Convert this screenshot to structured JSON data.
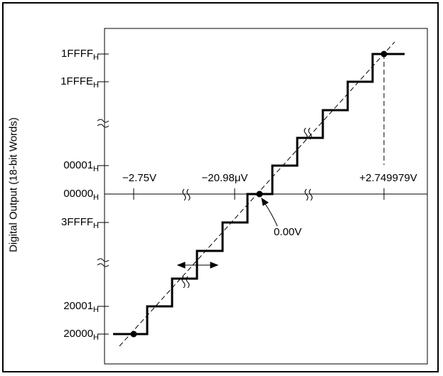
{
  "y_axis_title": "Digital Output (18-bit Words)",
  "y_codes": [
    {
      "code": "1FFFF",
      "sub": "H",
      "level": 10
    },
    {
      "code": "1FFFE",
      "sub": "H",
      "level": 9
    },
    {
      "code": "00001",
      "sub": "H",
      "level": 5
    },
    {
      "code": "00000",
      "sub": "H",
      "level": 4
    },
    {
      "code": "3FFFF",
      "sub": "H",
      "level": 3
    },
    {
      "code": "20001",
      "sub": "H",
      "level": 1
    },
    {
      "code": "20000",
      "sub": "H",
      "level": 0
    }
  ],
  "x_labels": {
    "neg_full": "−2.75V",
    "neg_lsb": "−20.98μV",
    "pos_full": "+2.749979V"
  },
  "zero_annotation": "0.00V",
  "colors": {
    "line": "#000000",
    "background": "#ffffff"
  }
}
